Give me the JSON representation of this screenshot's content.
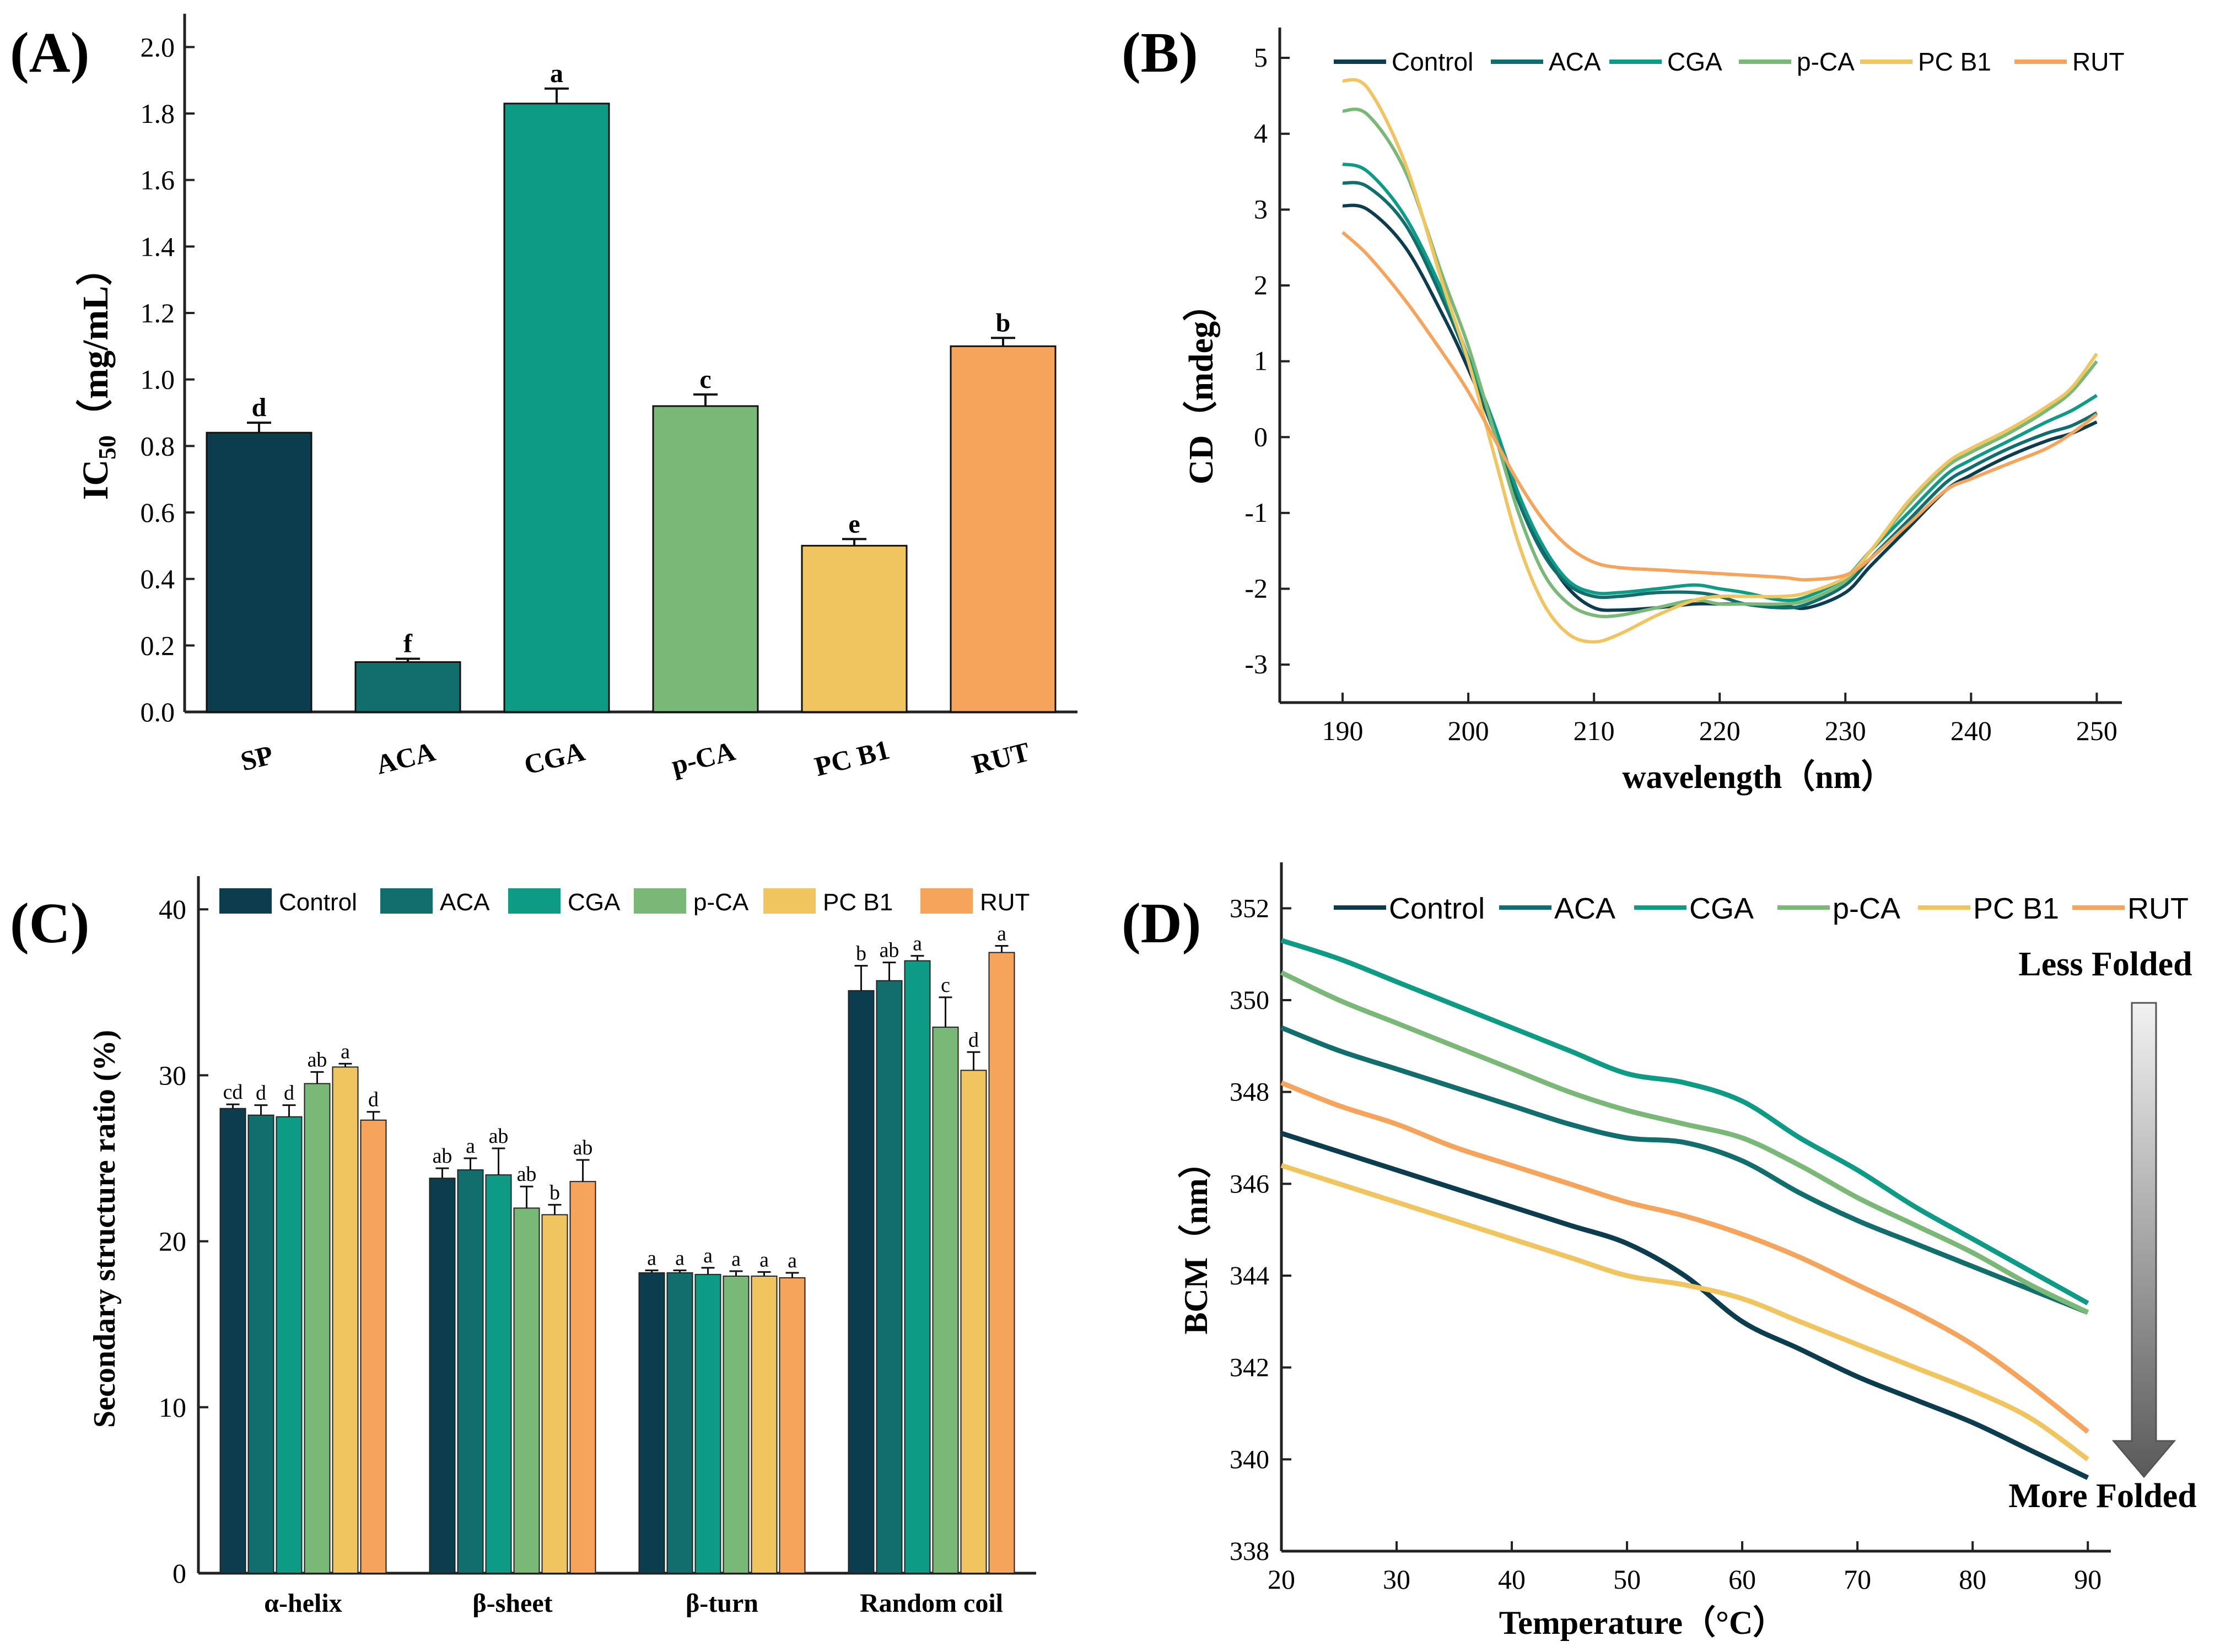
{
  "colors": {
    "Control": "#0c3d4f",
    "ACA": "#126e6c",
    "CGA": "#0e9b86",
    "p-CA": "#79b876",
    "PC B1": "#f0c45e",
    "RUT": "#f6a35b",
    "axis": "#222222"
  },
  "chart_data": [
    {
      "panel": "(A)",
      "type": "bar",
      "ylabel_main": "IC",
      "ylabel_sub": "50",
      "ylabel_unit": "（mg/mL）",
      "categories": [
        "SP",
        "ACA",
        "CGA",
        "p-CA",
        "PC B1",
        "RUT"
      ],
      "values": [
        0.84,
        0.15,
        1.83,
        0.92,
        0.5,
        1.1
      ],
      "errors": [
        0.03,
        0.01,
        0.045,
        0.035,
        0.02,
        0.025
      ],
      "letters": [
        "d",
        "f",
        "a",
        "c",
        "e",
        "b"
      ],
      "bar_color_keys": [
        "Control",
        "ACA",
        "CGA",
        "p-CA",
        "PC B1",
        "RUT"
      ],
      "ylim": [
        0,
        2.1
      ],
      "yticks": [
        "0.0",
        "0.2",
        "0.4",
        "0.6",
        "0.8",
        "1.0",
        "1.2",
        "1.4",
        "1.6",
        "1.8",
        "2.0"
      ]
    },
    {
      "panel": "(B)",
      "type": "line",
      "xlabel": "wavelength（nm）",
      "ylabel": "CD（mdeg）",
      "xlim": [
        185,
        252
      ],
      "ylim": [
        -3.5,
        5.4
      ],
      "xticks": [
        "190",
        "200",
        "210",
        "220",
        "230",
        "240",
        "250"
      ],
      "yticks": [
        "-3",
        "-2",
        "-1",
        "0",
        "1",
        "2",
        "3",
        "4",
        "5"
      ],
      "x": [
        190,
        192,
        195,
        198,
        200,
        202,
        204,
        206,
        208,
        210,
        212,
        215,
        218,
        220,
        222,
        225,
        227,
        230,
        232,
        235,
        238,
        240,
        243,
        246,
        248,
        250
      ],
      "series": [
        {
          "name": "Control",
          "y": [
            3.05,
            3.0,
            2.5,
            1.6,
            0.9,
            0.1,
            -0.8,
            -1.5,
            -2.0,
            -2.25,
            -2.28,
            -2.25,
            -2.2,
            -2.2,
            -2.2,
            -2.22,
            -2.25,
            -2.05,
            -1.7,
            -1.2,
            -0.7,
            -0.5,
            -0.25,
            -0.05,
            0.05,
            0.2
          ]
        },
        {
          "name": "ACA",
          "y": [
            3.35,
            3.3,
            2.8,
            1.8,
            1.0,
            0.1,
            -0.85,
            -1.55,
            -1.95,
            -2.1,
            -2.1,
            -2.05,
            -2.05,
            -2.1,
            -2.2,
            -2.25,
            -2.2,
            -1.95,
            -1.6,
            -1.1,
            -0.6,
            -0.4,
            -0.15,
            0.05,
            0.15,
            0.32
          ]
        },
        {
          "name": "CGA",
          "y": [
            3.6,
            3.5,
            2.9,
            1.9,
            1.05,
            0.2,
            -0.75,
            -1.45,
            -1.9,
            -2.05,
            -2.05,
            -2.0,
            -1.95,
            -2.0,
            -2.05,
            -2.15,
            -2.1,
            -1.85,
            -1.5,
            -1.0,
            -0.5,
            -0.3,
            -0.05,
            0.2,
            0.35,
            0.55
          ]
        },
        {
          "name": "p-CA",
          "y": [
            4.3,
            4.25,
            3.5,
            2.1,
            1.2,
            0.1,
            -1.0,
            -1.8,
            -2.2,
            -2.35,
            -2.35,
            -2.25,
            -2.15,
            -2.2,
            -2.2,
            -2.2,
            -2.15,
            -1.9,
            -1.5,
            -0.9,
            -0.4,
            -0.2,
            0.05,
            0.35,
            0.6,
            1.0
          ]
        },
        {
          "name": "PC B1",
          "y": [
            4.7,
            4.6,
            3.6,
            2.0,
            1.0,
            -0.2,
            -1.4,
            -2.2,
            -2.6,
            -2.7,
            -2.6,
            -2.35,
            -2.15,
            -2.1,
            -2.1,
            -2.1,
            -2.05,
            -1.85,
            -1.5,
            -0.85,
            -0.35,
            -0.15,
            0.1,
            0.4,
            0.65,
            1.1
          ]
        },
        {
          "name": "RUT",
          "y": [
            2.7,
            2.4,
            1.8,
            1.1,
            0.6,
            0.0,
            -0.6,
            -1.1,
            -1.45,
            -1.65,
            -1.72,
            -1.75,
            -1.78,
            -1.8,
            -1.82,
            -1.85,
            -1.88,
            -1.82,
            -1.6,
            -1.15,
            -0.7,
            -0.55,
            -0.35,
            -0.15,
            0.05,
            0.3
          ]
        }
      ]
    },
    {
      "panel": "(C)",
      "type": "bar",
      "ylabel": "Secondary structure ratio (%)",
      "categories": [
        "α-helix",
        "β-sheet",
        "β-turn",
        "Random coil"
      ],
      "ylim": [
        0,
        42
      ],
      "yticks": [
        "0",
        "10",
        "20",
        "30",
        "40"
      ],
      "series": [
        {
          "name": "Control",
          "values": [
            28.0,
            23.8,
            18.1,
            35.1
          ],
          "errors": [
            0.25,
            0.6,
            0.15,
            1.5
          ],
          "letters": [
            "cd",
            "ab",
            "a",
            "b"
          ]
        },
        {
          "name": "ACA",
          "values": [
            27.6,
            24.3,
            18.1,
            35.7
          ],
          "errors": [
            0.6,
            0.7,
            0.15,
            1.1
          ],
          "letters": [
            "d",
            "a",
            "a",
            "ab"
          ]
        },
        {
          "name": "CGA",
          "values": [
            27.5,
            24.0,
            18.0,
            36.9
          ],
          "errors": [
            0.7,
            1.6,
            0.4,
            0.3
          ],
          "letters": [
            "d",
            "ab",
            "a",
            "a"
          ]
        },
        {
          "name": "p-CA",
          "values": [
            29.5,
            22.0,
            17.9,
            32.9
          ],
          "errors": [
            0.7,
            1.3,
            0.3,
            1.8
          ],
          "letters": [
            "ab",
            "ab",
            "a",
            "c"
          ]
        },
        {
          "name": "PC B1",
          "values": [
            30.5,
            21.6,
            17.9,
            30.3
          ],
          "errors": [
            0.2,
            0.6,
            0.25,
            1.1
          ],
          "letters": [
            "a",
            "b",
            "a",
            "d"
          ]
        },
        {
          "name": "RUT",
          "values": [
            27.3,
            23.6,
            17.8,
            37.4
          ],
          "errors": [
            0.5,
            1.3,
            0.3,
            0.4
          ],
          "letters": [
            "d",
            "ab",
            "a",
            "a"
          ]
        }
      ]
    },
    {
      "panel": "(D)",
      "type": "line",
      "xlabel": "Temperature（°C）",
      "ylabel": "BCM（nm）",
      "xlim": [
        20,
        92
      ],
      "ylim": [
        338,
        353
      ],
      "xticks": [
        "20",
        "30",
        "40",
        "50",
        "60",
        "70",
        "80",
        "90"
      ],
      "yticks": [
        "338",
        "340",
        "342",
        "344",
        "346",
        "348",
        "350",
        "352"
      ],
      "annotation_top": "Less Folded",
      "annotation_bottom": "More Folded",
      "x": [
        20,
        25,
        30,
        35,
        40,
        45,
        50,
        55,
        60,
        65,
        70,
        75,
        80,
        85,
        90
      ],
      "series": [
        {
          "name": "Control",
          "y": [
            347.1,
            346.7,
            346.3,
            345.9,
            345.5,
            345.1,
            344.7,
            344.0,
            343.0,
            342.4,
            341.8,
            341.3,
            340.8,
            340.2,
            339.6
          ]
        },
        {
          "name": "ACA",
          "y": [
            349.4,
            348.9,
            348.5,
            348.1,
            347.7,
            347.3,
            347.0,
            346.9,
            346.5,
            345.8,
            345.2,
            344.7,
            344.2,
            343.7,
            343.2
          ]
        },
        {
          "name": "CGA",
          "y": [
            351.3,
            350.9,
            350.4,
            349.9,
            349.4,
            348.9,
            348.4,
            348.2,
            347.8,
            347.0,
            346.3,
            345.5,
            344.8,
            344.1,
            343.4
          ]
        },
        {
          "name": "p-CA",
          "y": [
            350.6,
            350.0,
            349.5,
            349.0,
            348.5,
            348.0,
            347.6,
            347.3,
            347.0,
            346.4,
            345.7,
            345.1,
            344.5,
            343.8,
            343.2
          ]
        },
        {
          "name": "PC B1",
          "y": [
            346.4,
            346.0,
            345.6,
            345.2,
            344.8,
            344.4,
            344.0,
            343.8,
            343.5,
            343.0,
            342.5,
            342.0,
            341.5,
            340.9,
            340.0
          ]
        },
        {
          "name": "RUT",
          "y": [
            348.2,
            347.7,
            347.3,
            346.8,
            346.4,
            346.0,
            345.6,
            345.3,
            344.9,
            344.4,
            343.8,
            343.2,
            342.5,
            341.6,
            340.6
          ]
        }
      ]
    }
  ]
}
